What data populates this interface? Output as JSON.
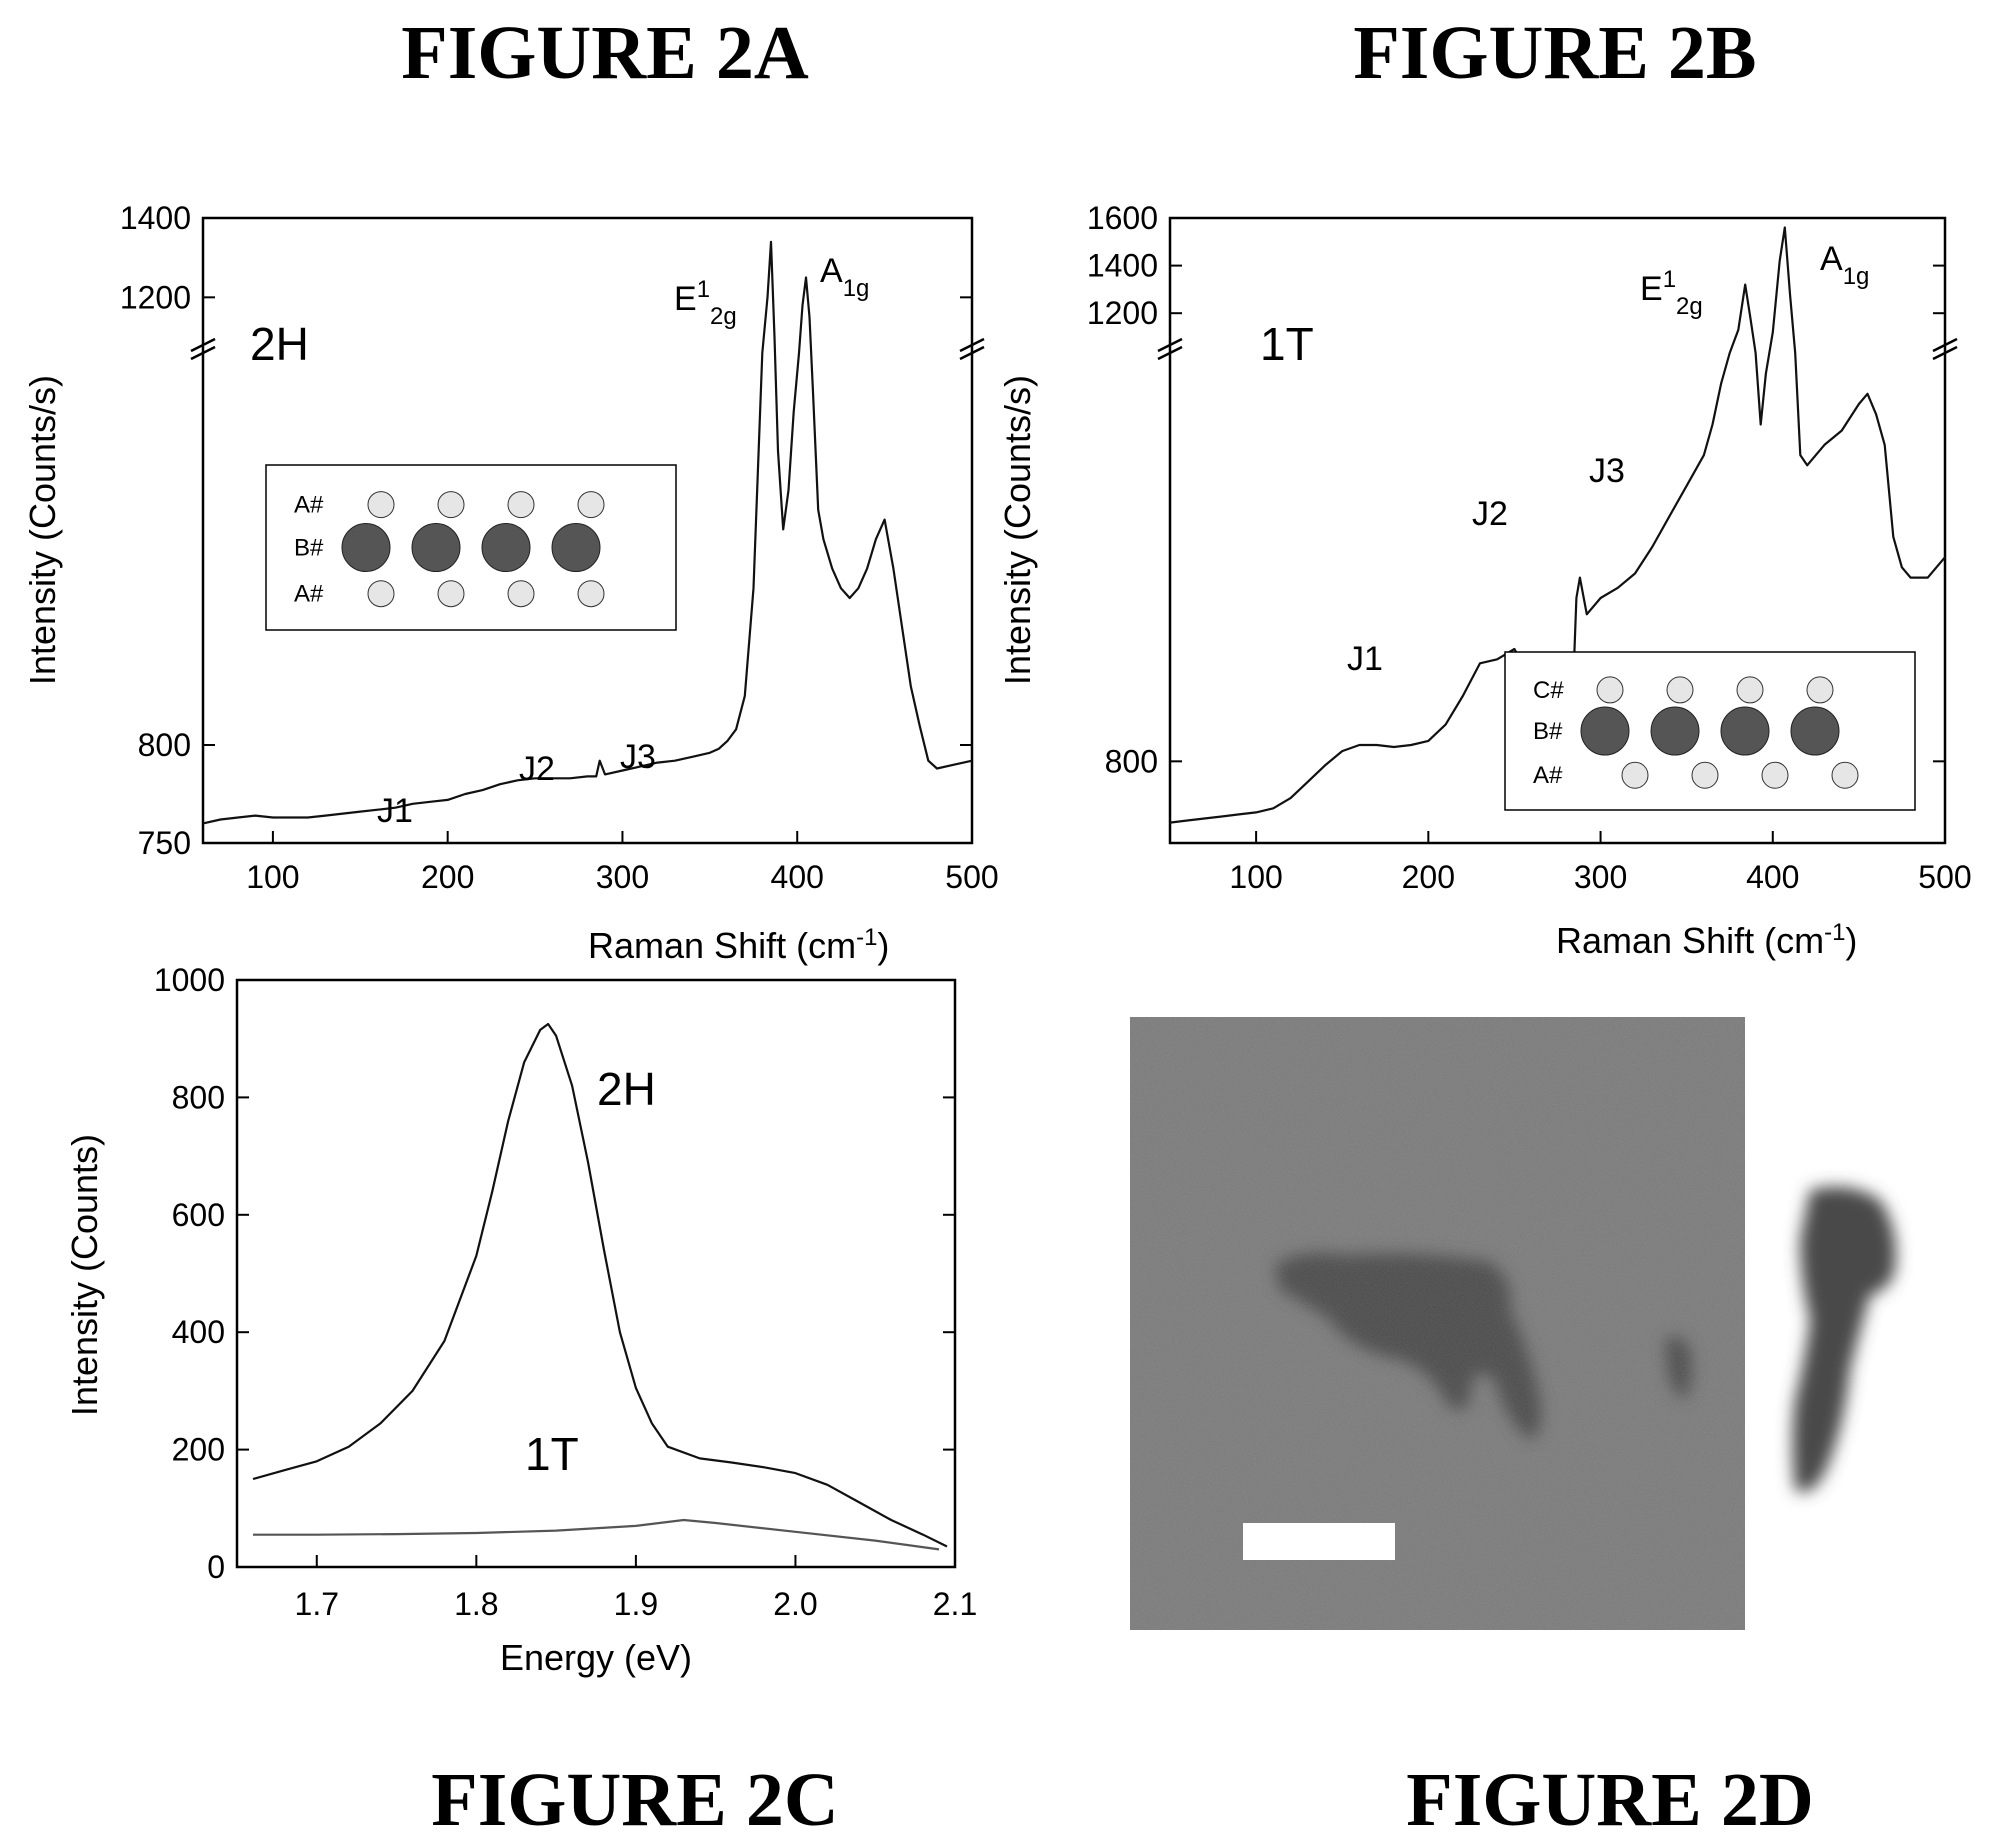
{
  "figures": {
    "a": {
      "label": "FIGURE 2A",
      "phase": "2H"
    },
    "b": {
      "label": "FIGURE 2B",
      "phase": "1T"
    },
    "c": {
      "label": "FIGURE 2C"
    },
    "d": {
      "label": "FIGURE 2D"
    }
  },
  "inset_a": {
    "rows": [
      "A#",
      "B#",
      "A#"
    ]
  },
  "inset_b": {
    "rows": [
      "C#",
      "B#",
      "A#"
    ]
  },
  "micrograph": {
    "background": "#7a7a7a",
    "flake_color": "#4a4a4a",
    "scale_bar_color": "#ffffff"
  },
  "chart_data": [
    {
      "id": "2A",
      "type": "line",
      "xlabel": "Raman Shift (cm-1)",
      "ylabel": "Intensity (Counts/s)",
      "xlim": [
        60,
        500
      ],
      "x_ticks": [
        "100",
        "200",
        "300",
        "400",
        "500"
      ],
      "y_ticks_lower": [
        "750",
        "800"
      ],
      "y_ticks_upper": [
        "1200",
        "1400"
      ],
      "ylim_lower": [
        750,
        1000
      ],
      "ylim_upper": [
        1100,
        1400
      ],
      "axis_break": true,
      "annotations": [
        {
          "text": "J1",
          "x": 160
        },
        {
          "text": "J2",
          "x": 248
        },
        {
          "text": "J3",
          "x": 305
        },
        {
          "text": "E12g",
          "x": 385
        },
        {
          "text": "A1g",
          "x": 405
        }
      ],
      "series": [
        {
          "x": [
            60,
            70,
            80,
            90,
            100,
            110,
            120,
            130,
            140,
            150,
            160,
            170,
            180,
            190,
            200,
            210,
            220,
            230,
            240,
            250,
            260,
            270,
            280,
            285,
            287,
            290,
            300,
            310,
            320,
            330,
            340,
            350,
            355,
            360,
            365,
            370,
            375,
            380,
            383,
            385,
            387,
            389,
            392,
            395,
            398,
            401,
            403,
            405,
            407,
            409,
            412,
            415,
            420,
            425,
            430,
            435,
            440,
            445,
            450,
            455,
            460,
            465,
            470,
            475,
            480,
            490,
            500
          ],
          "y": [
            760,
            762,
            763,
            764,
            763,
            763,
            763,
            764,
            765,
            766,
            767,
            768,
            770,
            771,
            772,
            775,
            777,
            780,
            782,
            783,
            783,
            783,
            784,
            784,
            792,
            785,
            787,
            789,
            791,
            792,
            794,
            796,
            798,
            802,
            808,
            825,
            880,
            1050,
            1200,
            1340,
            1100,
            950,
            910,
            930,
            970,
            1080,
            1180,
            1250,
            1150,
            980,
            920,
            905,
            890,
            880,
            875,
            880,
            890,
            905,
            915,
            890,
            860,
            830,
            810,
            792,
            788,
            790,
            792
          ]
        }
      ]
    },
    {
      "id": "2B",
      "type": "line",
      "xlabel": "Raman Shift (cm-1)",
      "ylabel": "Intensity (Counts/s)",
      "xlim": [
        50,
        500
      ],
      "x_ticks": [
        "100",
        "200",
        "300",
        "400",
        "500"
      ],
      "y_ticks_lower": [
        "800"
      ],
      "y_ticks_upper": [
        "1200",
        "1400",
        "1600"
      ],
      "ylim_lower": [
        760,
        1000
      ],
      "ylim_upper": [
        1100,
        1600
      ],
      "axis_break": true,
      "annotations": [
        {
          "text": "J1",
          "x": 160
        },
        {
          "text": "J2",
          "x": 235
        },
        {
          "text": "J3",
          "x": 300
        },
        {
          "text": "E12g",
          "x": 383
        },
        {
          "text": "A1g",
          "x": 406
        }
      ],
      "series": [
        {
          "x": [
            50,
            60,
            70,
            80,
            90,
            100,
            110,
            120,
            130,
            140,
            150,
            160,
            170,
            180,
            190,
            200,
            210,
            220,
            230,
            240,
            250,
            260,
            270,
            280,
            284,
            286,
            288,
            292,
            300,
            310,
            320,
            330,
            340,
            350,
            360,
            365,
            370,
            375,
            380,
            384,
            387,
            390,
            393,
            396,
            400,
            404,
            407,
            410,
            413,
            416,
            420,
            430,
            440,
            450,
            455,
            460,
            465,
            470,
            475,
            480,
            490,
            500
          ],
          "y": [
            770,
            771,
            772,
            773,
            774,
            775,
            777,
            782,
            790,
            798,
            805,
            808,
            808,
            807,
            808,
            810,
            818,
            832,
            848,
            850,
            855,
            840,
            828,
            826,
            835,
            880,
            890,
            872,
            880,
            885,
            892,
            905,
            920,
            935,
            950,
            965,
            985,
            1030,
            1130,
            1320,
            1180,
            1010,
            965,
            990,
            1120,
            1420,
            1560,
            1280,
            1020,
            950,
            945,
            955,
            962,
            975,
            980,
            970,
            955,
            910,
            895,
            890,
            890,
            900
          ]
        }
      ]
    },
    {
      "id": "2C",
      "type": "line",
      "xlabel": "Energy (eV)",
      "ylabel": "Intensity (Counts)",
      "xlim": [
        1.65,
        2.1
      ],
      "ylim": [
        0,
        1000
      ],
      "x_ticks": [
        "1.7",
        "1.8",
        "1.9",
        "2.0",
        "2.1"
      ],
      "y_ticks": [
        "0",
        "200",
        "400",
        "600",
        "800",
        "1000"
      ],
      "series": [
        {
          "name": "2H",
          "x": [
            1.66,
            1.68,
            1.7,
            1.72,
            1.74,
            1.76,
            1.78,
            1.8,
            1.81,
            1.82,
            1.83,
            1.84,
            1.845,
            1.85,
            1.86,
            1.87,
            1.88,
            1.89,
            1.9,
            1.91,
            1.92,
            1.94,
            1.96,
            1.98,
            2.0,
            2.02,
            2.04,
            2.06,
            2.08,
            2.095
          ],
          "y": [
            150,
            165,
            180,
            205,
            245,
            300,
            385,
            530,
            640,
            760,
            860,
            915,
            925,
            905,
            820,
            690,
            540,
            400,
            305,
            245,
            205,
            185,
            178,
            170,
            160,
            140,
            110,
            80,
            55,
            35
          ]
        },
        {
          "name": "1T",
          "x": [
            1.66,
            1.7,
            1.75,
            1.8,
            1.85,
            1.9,
            1.93,
            1.95,
            2.0,
            2.05,
            2.09
          ],
          "y": [
            55,
            55,
            56,
            58,
            62,
            70,
            80,
            75,
            60,
            45,
            30
          ]
        }
      ]
    }
  ]
}
